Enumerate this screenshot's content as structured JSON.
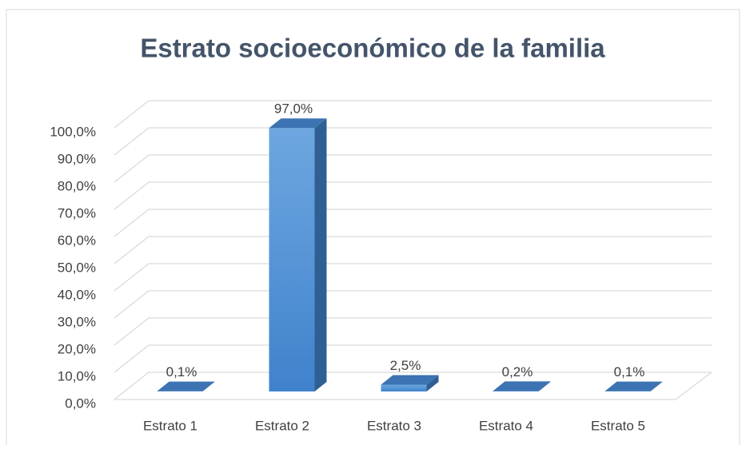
{
  "chart_data": {
    "type": "bar3d",
    "title": "Estrato socioeconómico de la familia",
    "categories": [
      "Estrato 1",
      "Estrato 2",
      "Estrato 3",
      "Estrato 4",
      "Estrato 5"
    ],
    "values": [
      0.1,
      97.0,
      2.5,
      0.2,
      0.1
    ],
    "value_labels": [
      "0,1%",
      "97,0%",
      "2,5%",
      "0,2%",
      "0,1%"
    ],
    "color": "#4a8fd8",
    "ylim": [
      0,
      100
    ],
    "yticks": [
      {
        "value": 0,
        "label": "0,0%"
      },
      {
        "value": 10,
        "label": "10,0%"
      },
      {
        "value": 20,
        "label": "20,0%"
      },
      {
        "value": 30,
        "label": "30,0%"
      },
      {
        "value": 40,
        "label": "40,0%"
      },
      {
        "value": 50,
        "label": "50,0%"
      },
      {
        "value": 60,
        "label": "60,0%"
      },
      {
        "value": 70,
        "label": "70,0%"
      },
      {
        "value": 80,
        "label": "80,0%"
      },
      {
        "value": 90,
        "label": "90,0%"
      },
      {
        "value": 100,
        "label": "100,0%"
      }
    ],
    "grid": true
  }
}
